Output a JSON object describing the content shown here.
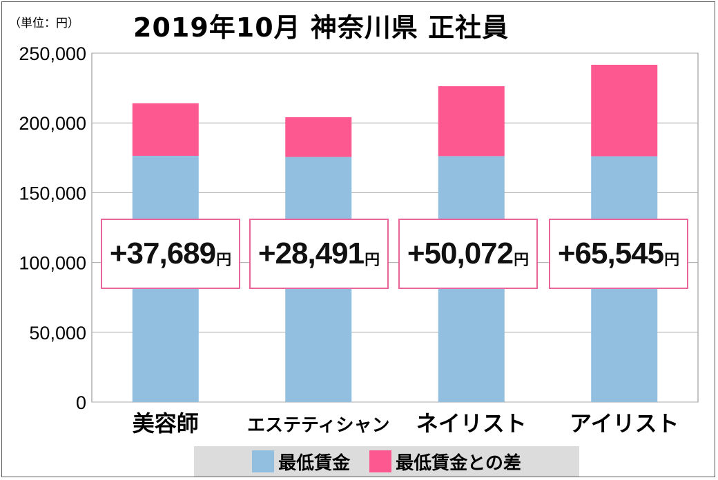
{
  "chart_data": {
    "type": "bar",
    "stacked": true,
    "title": "2019年10月 神奈川県 正社員",
    "unit_label": "（単位：円）",
    "categories": [
      "美容師",
      "エステティシャン",
      "ネイリスト",
      "アイリスト"
    ],
    "series": [
      {
        "name": "最低賃金",
        "color": "#92bedf",
        "values": [
          176400,
          175600,
          176200,
          176100
        ]
      },
      {
        "name": "最低賃金との差",
        "color": "#fe5890",
        "values": [
          37689,
          28491,
          50072,
          65545
        ]
      }
    ],
    "ylim": [
      0,
      250000
    ],
    "yticks": [
      "0",
      "50,000",
      "100,000",
      "150,000",
      "200,000",
      "250,000"
    ],
    "ytick_values": [
      0,
      50000,
      100000,
      150000,
      200000,
      250000
    ],
    "grid": true,
    "legend_position": "bottom",
    "annotations": [
      {
        "number": "+37,689",
        "unit": "円"
      },
      {
        "number": "+28,491",
        "unit": "円"
      },
      {
        "number": "+50,072",
        "unit": "円"
      },
      {
        "number": "+65,545",
        "unit": "円"
      }
    ]
  }
}
